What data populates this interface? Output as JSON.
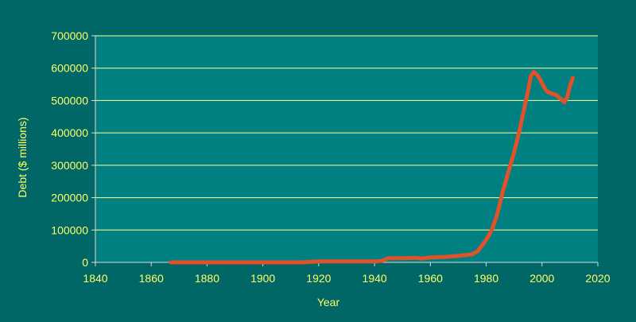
{
  "colors": {
    "background": "#006666",
    "plot_area": "#008080",
    "series_line": "#e0522a",
    "text": "#ffff66",
    "gridline": "#ffff99"
  },
  "chart_data": {
    "type": "line",
    "title": "",
    "xlabel": "Year",
    "ylabel": "Debt ($ millions)",
    "xlim": [
      1840,
      2020
    ],
    "ylim": [
      0,
      700000
    ],
    "x_ticks": [
      1840,
      1860,
      1880,
      1900,
      1920,
      1940,
      1960,
      1980,
      2000,
      2020
    ],
    "y_ticks": [
      0,
      100000,
      200000,
      300000,
      400000,
      500000,
      600000,
      700000
    ],
    "grid": "horizontal",
    "legend": "none",
    "series": [
      {
        "x": [
          1867,
          1880,
          1900,
          1914,
          1918,
          1920,
          1930,
          1939,
          1941,
          1943,
          1945,
          1950,
          1955,
          1957,
          1960,
          1965,
          1970,
          1975,
          1977,
          1980,
          1982,
          1984,
          1986,
          1988,
          1990,
          1992,
          1994,
          1995,
          1996,
          1997,
          1998,
          1999,
          2000,
          2001,
          2002,
          2003,
          2004,
          2005,
          2006,
          2007,
          2008,
          2009,
          2010,
          2011
        ],
        "y": [
          0,
          0,
          0,
          0,
          2000,
          3000,
          3000,
          3000,
          3000,
          6000,
          13000,
          13000,
          14000,
          12000,
          15000,
          17000,
          20000,
          25000,
          35000,
          70000,
          100000,
          150000,
          220000,
          280000,
          340000,
          410000,
          490000,
          530000,
          575000,
          588000,
          582000,
          570000,
          553000,
          537000,
          527000,
          523000,
          520000,
          518000,
          510000,
          503000,
          495000,
          510000,
          545000,
          570000
        ]
      }
    ]
  }
}
